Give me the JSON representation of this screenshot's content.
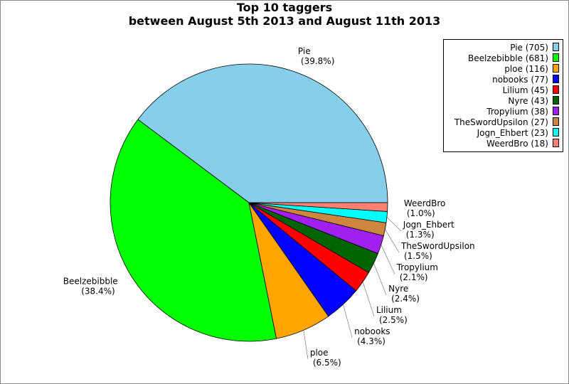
{
  "chart_data": {
    "type": "pie",
    "title": "Top 10 taggers",
    "subtitle": "between August 5th 2013 and August 11th 2013",
    "start_angle_deg": 0,
    "direction": "counterclockwise",
    "legend_position": "top-right",
    "slices": [
      {
        "name": "Pie",
        "value": 705,
        "percent_label": "(39.8%)",
        "legend": "Pie (705)",
        "color": "#87CEEB"
      },
      {
        "name": "Beelzebibble",
        "value": 681,
        "percent_label": "(38.4%)",
        "legend": "Beelzebibble (681)",
        "color": "#00FF00"
      },
      {
        "name": "ploe",
        "value": 116,
        "percent_label": "(6.5%)",
        "legend": "ploe (116)",
        "color": "#FFA500"
      },
      {
        "name": "nobooks",
        "value": 77,
        "percent_label": "(4.3%)",
        "legend": "nobooks (77)",
        "color": "#0000FF"
      },
      {
        "name": "Lilium",
        "value": 45,
        "percent_label": "(2.5%)",
        "legend": "Lilium (45)",
        "color": "#FF0000"
      },
      {
        "name": "Nyre",
        "value": 43,
        "percent_label": "(2.4%)",
        "legend": "Nyre (43)",
        "color": "#006400"
      },
      {
        "name": "Tropylium",
        "value": 38,
        "percent_label": "(2.1%)",
        "legend": "Tropylium (38)",
        "color": "#A020F0"
      },
      {
        "name": "TheSwordUpsilon",
        "value": 27,
        "percent_label": "(1.5%)",
        "legend": "TheSwordUpsilon (27)",
        "color": "#CD853F"
      },
      {
        "name": "Jogn_Ehbert",
        "value": 23,
        "percent_label": "(1.3%)",
        "legend": "Jogn_Ehbert (23)",
        "color": "#00FFFF"
      },
      {
        "name": "WeerdBro",
        "value": 18,
        "percent_label": "(1.0%)",
        "legend": "WeerdBro (18)",
        "color": "#FA8072"
      }
    ]
  }
}
